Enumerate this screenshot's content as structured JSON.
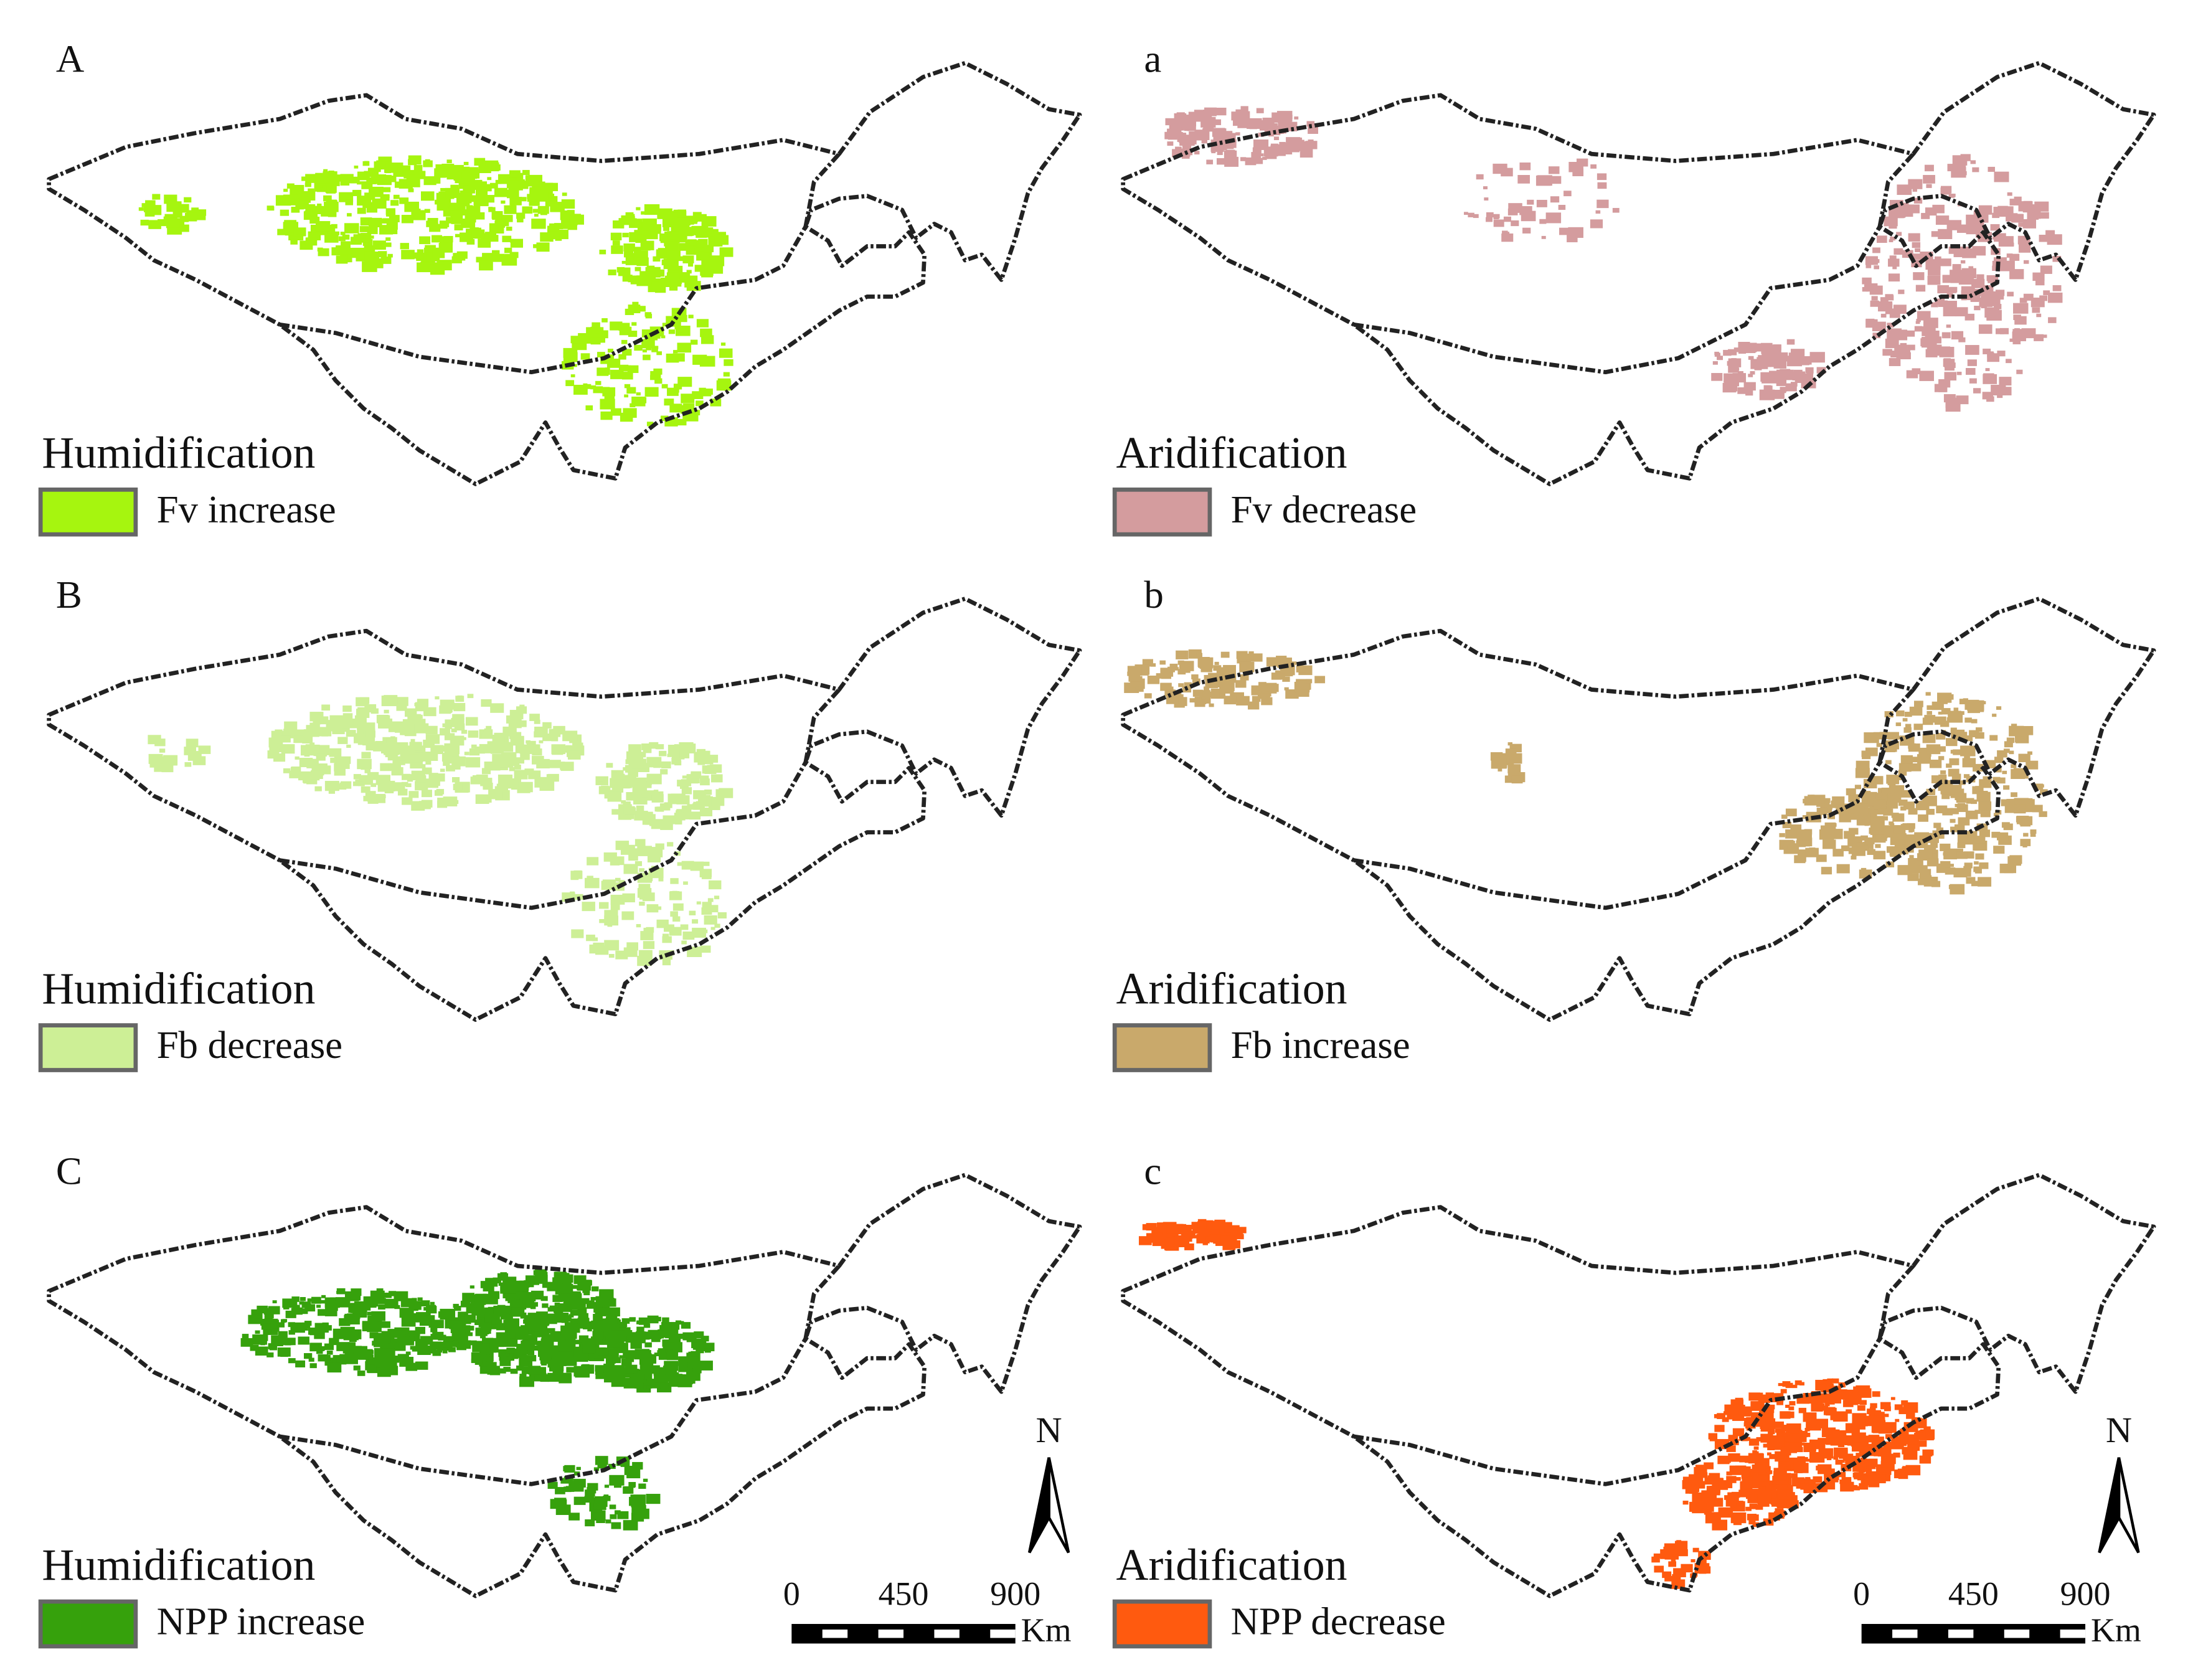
{
  "panels": [
    {
      "label": "A",
      "legend_title": "Humidification",
      "legend_item": "Fv increase",
      "color": "#a6f50f"
    },
    {
      "label": "a",
      "legend_title": "Aridification",
      "legend_item": "Fv decrease",
      "color": "#d49c9e"
    },
    {
      "label": "B",
      "legend_title": "Humidification",
      "legend_item": "Fb decrease",
      "color": "#cdef96"
    },
    {
      "label": "b",
      "legend_title": "Aridification",
      "legend_item": "Fb increase",
      "color": "#c9a96b"
    },
    {
      "label": "C",
      "legend_title": "Humidification",
      "legend_item": "NPP increase",
      "color": "#36a10c"
    },
    {
      "label": "c",
      "legend_title": "Aridification",
      "legend_item": "NPP decrease",
      "color": "#ff5a0f"
    }
  ],
  "scale_bar": {
    "ticks": [
      0,
      450,
      900
    ],
    "unit": "Km"
  },
  "north": "N"
}
